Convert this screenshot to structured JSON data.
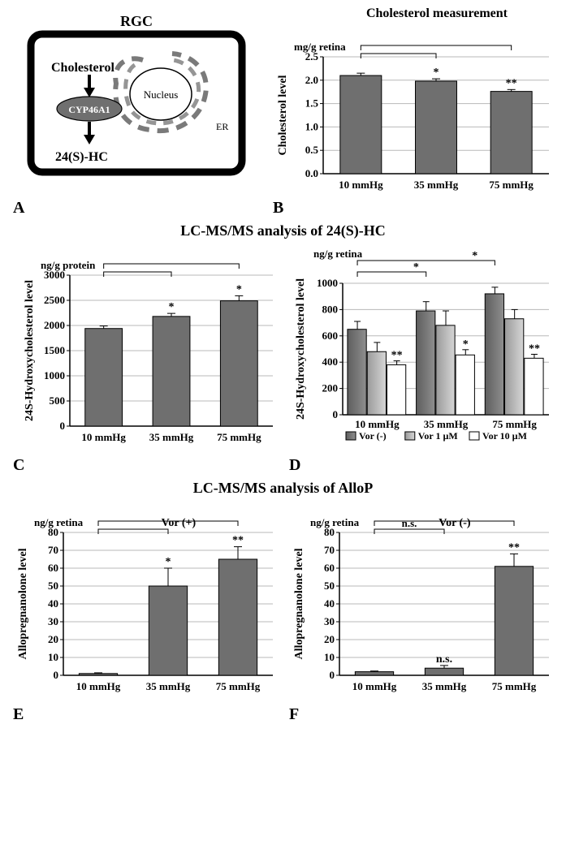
{
  "panelA": {
    "label": "A",
    "title": "RGC",
    "input": "Cholesterol",
    "enzyme": "CYP46A1",
    "nucleus": "Nucleus",
    "er": "ER",
    "output": "24(S)-HC"
  },
  "panelB": {
    "label": "B",
    "title": "Cholesterol measurement",
    "unit": "mg/g retina",
    "ylabel": "Cholesterol level",
    "ylim": [
      0,
      2.5
    ],
    "ytick_step": 0.5,
    "categories": [
      "10 mmHg",
      "35 mmHg",
      "75 mmHg"
    ],
    "values": [
      2.1,
      1.98,
      1.76
    ],
    "errors": [
      0.05,
      0.05,
      0.04
    ],
    "sig": [
      "",
      "*",
      "**"
    ],
    "bar_color": "#6f6f6f",
    "grid_color": "#b8b8b8"
  },
  "sectionCD_title": "LC-MS/MS  analysis of 24(S)-HC",
  "panelC": {
    "label": "C",
    "unit": "ng/g protein",
    "ylabel": "24S-Hydroxycholesterol level",
    "ylim": [
      0,
      3000
    ],
    "ytick_step": 500,
    "categories": [
      "10 mmHg",
      "35 mmHg",
      "75 mmHg"
    ],
    "values": [
      1940,
      2180,
      2490
    ],
    "errors": [
      50,
      60,
      100
    ],
    "sig": [
      "",
      "*",
      "*"
    ],
    "bar_color": "#6f6f6f"
  },
  "panelD": {
    "label": "D",
    "unit": "ng/g retina",
    "ylabel": "24S-Hydroxycholesterol level",
    "ylim": [
      0,
      1000
    ],
    "ytick_step": 200,
    "categories": [
      "10 mmHg",
      "35 mmHg",
      "75 mmHg"
    ],
    "series": [
      {
        "name": "Vor (-)",
        "color_a": "#5e5e5e",
        "color_b": "#8f8f8f",
        "values": [
          650,
          790,
          920
        ],
        "errors": [
          60,
          70,
          50
        ]
      },
      {
        "name": "Vor 1 µM",
        "color_a": "#9a9a9a",
        "color_b": "#d6d6d6",
        "values": [
          480,
          680,
          730
        ],
        "errors": [
          70,
          110,
          70
        ]
      },
      {
        "name": "Vor 10 µM",
        "color_a": "#ffffff",
        "color_b": "#ffffff",
        "values": [
          380,
          455,
          430
        ],
        "errors": [
          30,
          40,
          30
        ]
      }
    ],
    "sig_top": [
      "*",
      "*"
    ],
    "sig_within": [
      [
        "",
        "",
        "**"
      ],
      [
        "",
        "",
        "*"
      ],
      [
        "",
        "",
        "**"
      ]
    ]
  },
  "sectionEF_title": "LC-MS/MS  analysis of AlloP",
  "panelE": {
    "label": "E",
    "unit": "ng/g retina",
    "vor": "Vor (+)",
    "ylabel": "Allopregnanolone level",
    "ylim": [
      0,
      80
    ],
    "ytick_step": 10,
    "categories": [
      "10 mmHg",
      "35 mmHg",
      "75 mmHg"
    ],
    "values": [
      1,
      50,
      65
    ],
    "errors": [
      0.4,
      10,
      7
    ],
    "sig": [
      "",
      "*",
      "**"
    ],
    "bar_color": "#6f6f6f"
  },
  "panelF": {
    "label": "F",
    "unit": "ng/g retina",
    "vor": "Vor (-)",
    "ylabel": "Allopregnanolone level",
    "ylim": [
      0,
      80
    ],
    "ytick_step": 10,
    "categories": [
      "10 mmHg",
      "35 mmHg",
      "75 mmHg"
    ],
    "values": [
      2,
      4,
      61
    ],
    "errors": [
      0.4,
      1.5,
      7
    ],
    "sig": [
      "",
      "n.s.",
      "**"
    ],
    "bar_color": "#6f6f6f"
  }
}
